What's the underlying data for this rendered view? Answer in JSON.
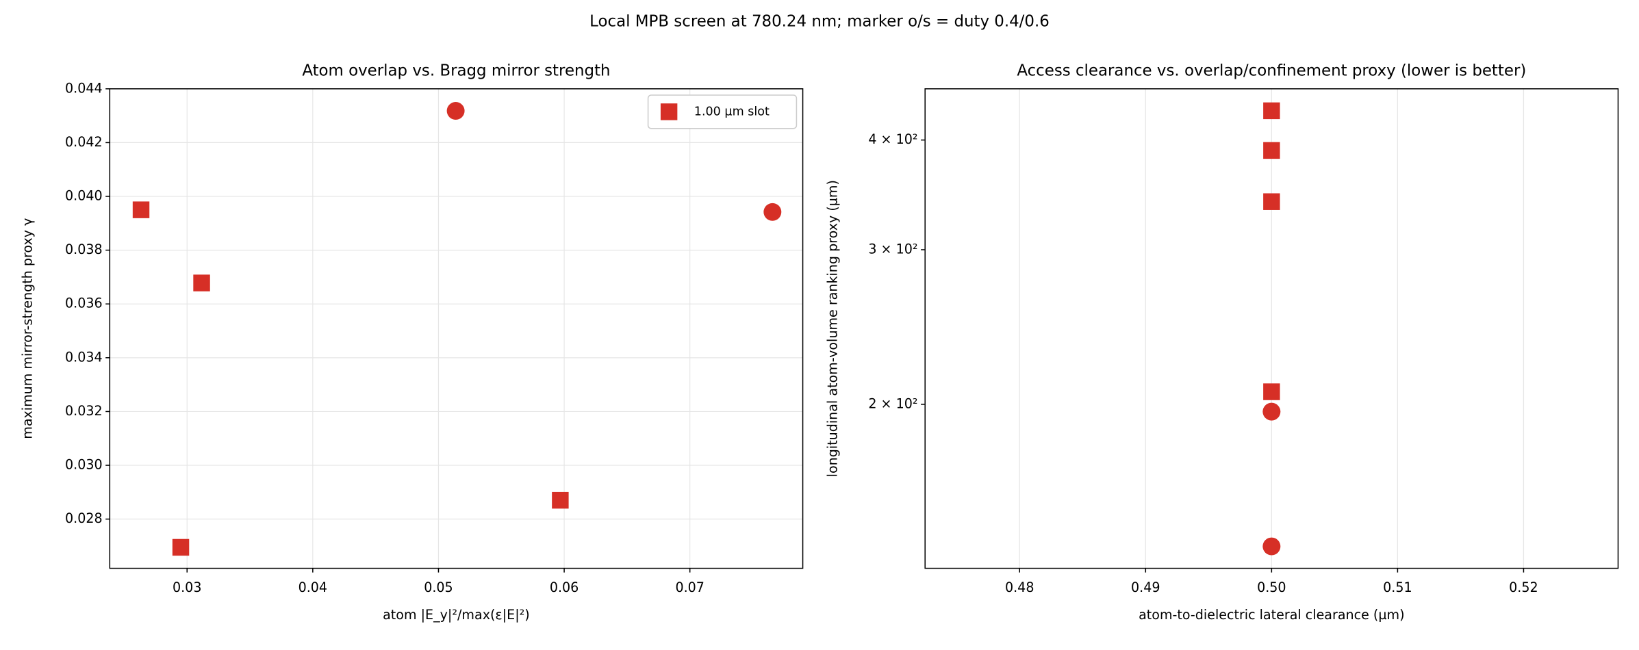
{
  "title": "Local MPB screen at 780.24 nm; marker o/s = duty 0.4/0.6",
  "chart_data": [
    {
      "type": "scatter",
      "title": "Atom overlap vs. Bragg mirror strength",
      "x_label": "atom |E_y|²/max(ε|E|²)",
      "y_label": "maximum mirror-strength proxy γ",
      "xlim": [
        0.02385,
        0.07898
      ],
      "ylim": [
        0.02617,
        0.044
      ],
      "xticks": [
        0.03,
        0.04,
        0.05,
        0.06,
        0.07
      ],
      "yticks": [
        0.028,
        {
          "value": 0.03,
          "label": "0.030"
        },
        0.032,
        0.034,
        0.036,
        0.038,
        {
          "value": 0.04,
          "label": "0.040"
        },
        0.042,
        0.044
      ],
      "grid": "both",
      "legend": "upper right",
      "series": [
        {
          "name": "1.00 µm slot",
          "color": "#d62f26",
          "marker": "square",
          "x": [
            0.02634,
            0.03116,
            0.0295,
            0.05969
          ],
          "values": [
            0.0395,
            0.03678,
            0.02695,
            0.0287
          ]
        },
        {
          "color": "#d62f26",
          "marker": "circle",
          "x": [
            0.05137,
            0.07657
          ],
          "values": [
            0.04318,
            0.03942
          ]
        }
      ]
    },
    {
      "type": "scatter",
      "title": "Access clearance vs. overlap/confinement proxy (lower is better)",
      "x_label": "atom-to-dielectric lateral clearance (µm)",
      "y_label": "longitudinal atom-volume ranking proxy (µm)",
      "xlim": [
        0.4725,
        0.5275
      ],
      "ylim": [
        130.1,
        457.5
      ],
      "yscale": "log",
      "xticks": [
        0.48,
        0.49,
        {
          "value": 0.5,
          "label": "0.50"
        },
        0.51,
        0.52
      ],
      "yticks": [
        {
          "value": 200,
          "label": "2 × 10²"
        },
        {
          "value": 300,
          "label": "3 × 10²"
        },
        {
          "value": 400,
          "label": "4 × 10²"
        }
      ],
      "grid": "x",
      "series": [
        {
          "color": "#d62f26",
          "marker": "square",
          "x": [
            0.5,
            0.5,
            0.5,
            0.5
          ],
          "values": [
            431.9,
            389.2,
            340.3,
            206.7
          ]
        },
        {
          "color": "#d62f26",
          "marker": "circle",
          "x": [
            0.5,
            0.5
          ],
          "values": [
            196.2,
            137.8
          ]
        }
      ]
    }
  ]
}
